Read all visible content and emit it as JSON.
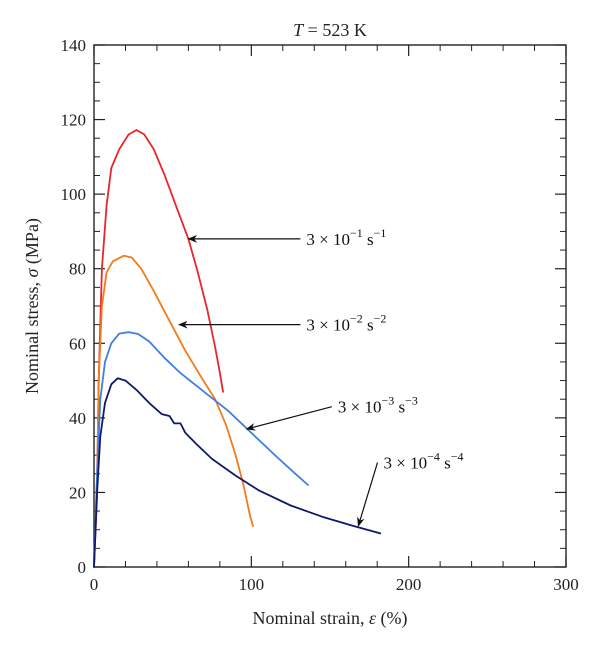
{
  "chart_data": {
    "type": "line",
    "title": {
      "var": "T",
      "rest": " = 523 K"
    },
    "xlabel": {
      "text": "Nominal strain, ",
      "sym": "ε",
      "unit": " (%)"
    },
    "ylabel": {
      "text": "Nominal stress, ",
      "sym": "σ",
      "unit": " (MPa)"
    },
    "xlim": [
      0,
      300
    ],
    "ylim": [
      0,
      140
    ],
    "x_ticks": [
      0,
      100,
      200,
      300
    ],
    "y_ticks": [
      0,
      20,
      40,
      60,
      80,
      100,
      120,
      140
    ],
    "x_minor_step": 20,
    "y_minor_step": 5,
    "grid": false,
    "series": [
      {
        "name": "3 × 10^−1 s^−1",
        "label": {
          "base": "3 × 10",
          "exp": "−1",
          "unit": " s",
          "unit_exp": "−1"
        },
        "color": "#e8262b",
        "points": [
          [
            0,
            0
          ],
          [
            2,
            20
          ],
          [
            3,
            50
          ],
          [
            5,
            80
          ],
          [
            8,
            97
          ],
          [
            11,
            107
          ],
          [
            16,
            112
          ],
          [
            22,
            116
          ],
          [
            27,
            117.2
          ],
          [
            32,
            116
          ],
          [
            38,
            112
          ],
          [
            45,
            105
          ],
          [
            52,
            97
          ],
          [
            60,
            88
          ],
          [
            66,
            79
          ],
          [
            72,
            69
          ],
          [
            77,
            59
          ],
          [
            80,
            52
          ],
          [
            82,
            47
          ]
        ]
      },
      {
        "name": "3 × 10^−2 s^−1",
        "label": {
          "base": "3 × 10",
          "exp": "−2",
          "unit": " s",
          "unit_exp": "−2"
        },
        "color": "#f07c1c",
        "points": [
          [
            0,
            0
          ],
          [
            2,
            25
          ],
          [
            3,
            50
          ],
          [
            5,
            70
          ],
          [
            8,
            79
          ],
          [
            12,
            82
          ],
          [
            19,
            83.5
          ],
          [
            24,
            83
          ],
          [
            30,
            80
          ],
          [
            38,
            74
          ],
          [
            48,
            66
          ],
          [
            58,
            58
          ],
          [
            68,
            51
          ],
          [
            77,
            45
          ],
          [
            84,
            38
          ],
          [
            90,
            30
          ],
          [
            95,
            22
          ],
          [
            99,
            14
          ],
          [
            101,
            11
          ]
        ]
      },
      {
        "name": "3 × 10^−3 s^−1",
        "label": {
          "base": "3 × 10",
          "exp": "−3",
          "unit": " s",
          "unit_exp": "−3"
        },
        "color": "#3f7fe0",
        "points": [
          [
            0,
            0
          ],
          [
            2,
            25
          ],
          [
            4,
            45
          ],
          [
            7,
            55
          ],
          [
            11,
            60
          ],
          [
            16,
            62.6
          ],
          [
            22,
            63
          ],
          [
            28,
            62.5
          ],
          [
            35,
            60.5
          ],
          [
            45,
            56
          ],
          [
            55,
            52
          ],
          [
            70,
            47
          ],
          [
            85,
            42
          ],
          [
            100,
            36
          ],
          [
            115,
            30
          ],
          [
            128,
            25
          ],
          [
            136,
            22
          ]
        ]
      },
      {
        "name": "3 × 10^−4 s^−1",
        "label": {
          "base": "3 × 10",
          "exp": "−4",
          "unit": " s",
          "unit_exp": "−4"
        },
        "color": "#101a6b",
        "points": [
          [
            0,
            0
          ],
          [
            2,
            20
          ],
          [
            4,
            35
          ],
          [
            7,
            44
          ],
          [
            11,
            49
          ],
          [
            15,
            50.6
          ],
          [
            20,
            50
          ],
          [
            27,
            47.5
          ],
          [
            35,
            44
          ],
          [
            43,
            41
          ],
          [
            48,
            40.5
          ],
          [
            51,
            38.5
          ],
          [
            55,
            38.5
          ],
          [
            58,
            36
          ],
          [
            65,
            33
          ],
          [
            75,
            29
          ],
          [
            90,
            24.5
          ],
          [
            105,
            20.5
          ],
          [
            125,
            16.5
          ],
          [
            145,
            13.5
          ],
          [
            165,
            11
          ],
          [
            182,
            9
          ]
        ]
      }
    ],
    "annotations": [
      {
        "series": 0,
        "arrow_tip": [
          60,
          88
        ],
        "text_at": [
          135,
          88
        ]
      },
      {
        "series": 1,
        "arrow_tip": [
          54,
          65
        ],
        "text_at": [
          135,
          65
        ]
      },
      {
        "series": 2,
        "arrow_tip": [
          97,
          37
        ],
        "text_at": [
          155,
          43
        ]
      },
      {
        "series": 3,
        "arrow_tip": [
          168,
          11
        ],
        "text_at": [
          184,
          28
        ]
      }
    ]
  }
}
